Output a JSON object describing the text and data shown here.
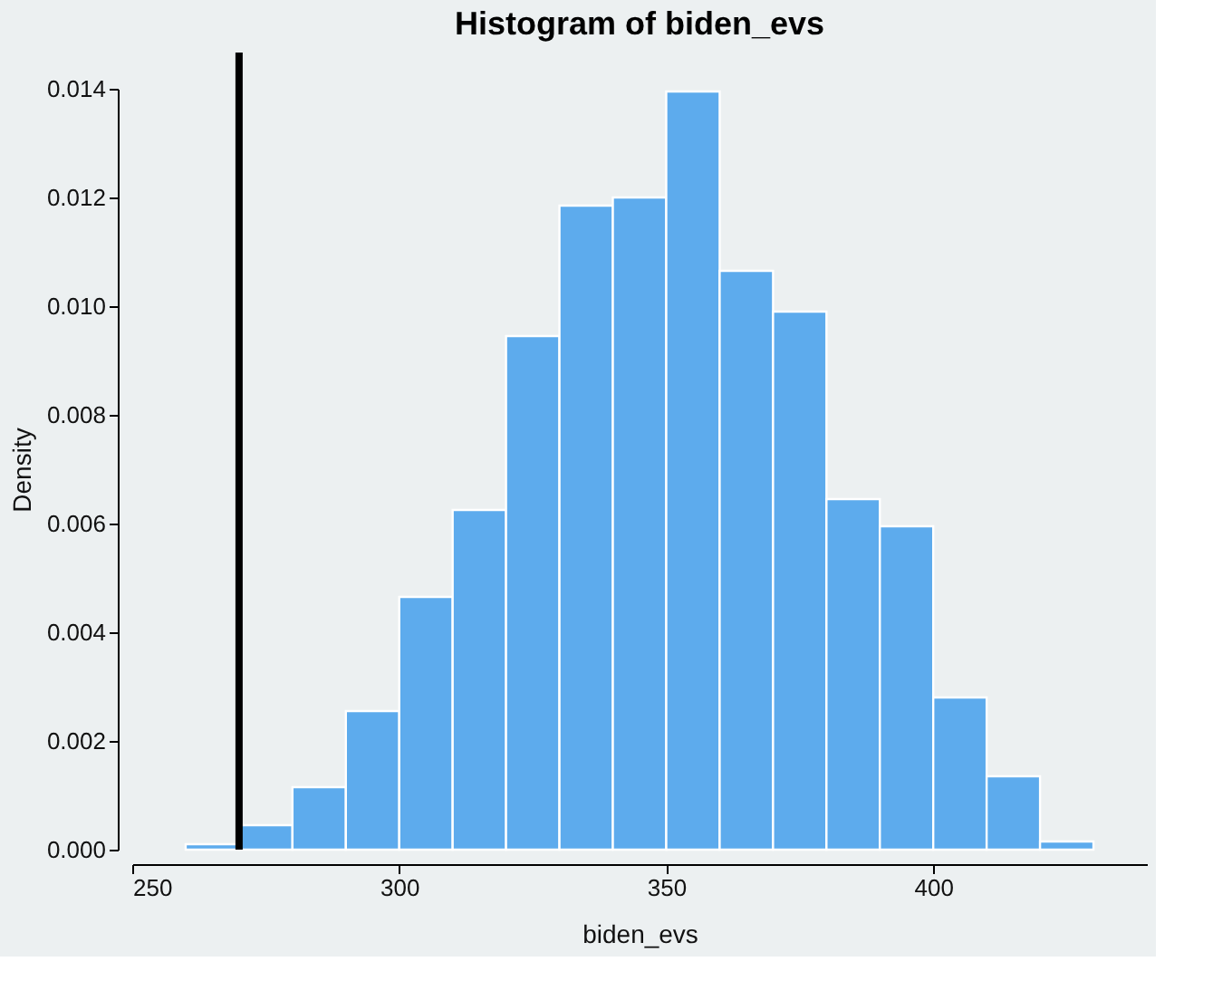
{
  "chart_data": {
    "type": "histogram",
    "title": "Histogram of biden_evs",
    "xlabel": "biden_evs",
    "ylabel": "Density",
    "bins": [
      260,
      270,
      280,
      290,
      300,
      310,
      320,
      330,
      340,
      350,
      360,
      370,
      380,
      390,
      400,
      410,
      420,
      430
    ],
    "values": [
      0.0001,
      0.00045,
      0.00115,
      0.00255,
      0.00465,
      0.00625,
      0.00945,
      0.01185,
      0.012,
      0.01395,
      0.01065,
      0.0099,
      0.00645,
      0.00595,
      0.0028,
      0.00135,
      0.00015
    ],
    "color": "#5dabed",
    "xlim": [
      250,
      440
    ],
    "xticks": [
      250,
      300,
      350,
      400
    ],
    "ylim": [
      0,
      0.014
    ],
    "yticks": [
      {
        "value": 0,
        "label": "0.000"
      },
      0.002,
      0.004,
      0.006,
      0.008,
      {
        "value": 0.01,
        "label": "0.010"
      },
      0.012,
      0.014
    ],
    "ref_lines": [
      {
        "axis": "x",
        "value": 270,
        "color": "#000000"
      }
    ],
    "grid": false
  }
}
